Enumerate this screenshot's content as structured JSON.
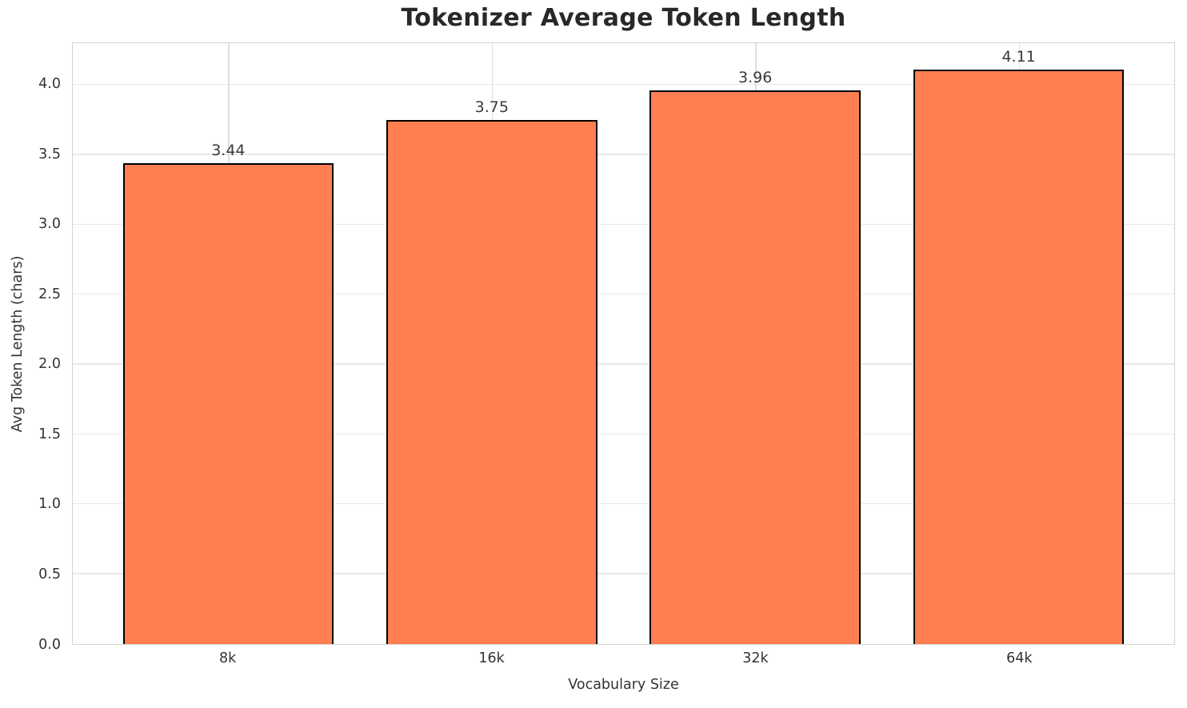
{
  "chart_data": {
    "type": "bar",
    "title": "Tokenizer Average Token Length",
    "xlabel": "Vocabulary Size",
    "ylabel": "Avg Token Length (chars)",
    "categories": [
      "8k",
      "16k",
      "32k",
      "64k"
    ],
    "values": [
      3.44,
      3.75,
      3.96,
      4.11
    ],
    "bar_labels": [
      "3.44",
      "3.75",
      "3.96",
      "4.11"
    ],
    "yticks": [
      0.0,
      0.5,
      1.0,
      1.5,
      2.0,
      2.5,
      3.0,
      3.5,
      4.0
    ],
    "ytick_labels": [
      "0.0",
      "0.5",
      "1.0",
      "1.5",
      "2.0",
      "2.5",
      "3.0",
      "3.5",
      "4.0"
    ],
    "ylim": [
      0,
      4.3
    ],
    "grid": "horizontal and vertical light gridlines",
    "legend": "none",
    "colors": {
      "bar_fill": "#FF7F50",
      "bar_edge": "#000000",
      "gridline": "#e9e9e9",
      "spine": "#d2d2d2",
      "title_text": "#282828",
      "tick_text": "#333333",
      "background": "#ffffff"
    }
  }
}
